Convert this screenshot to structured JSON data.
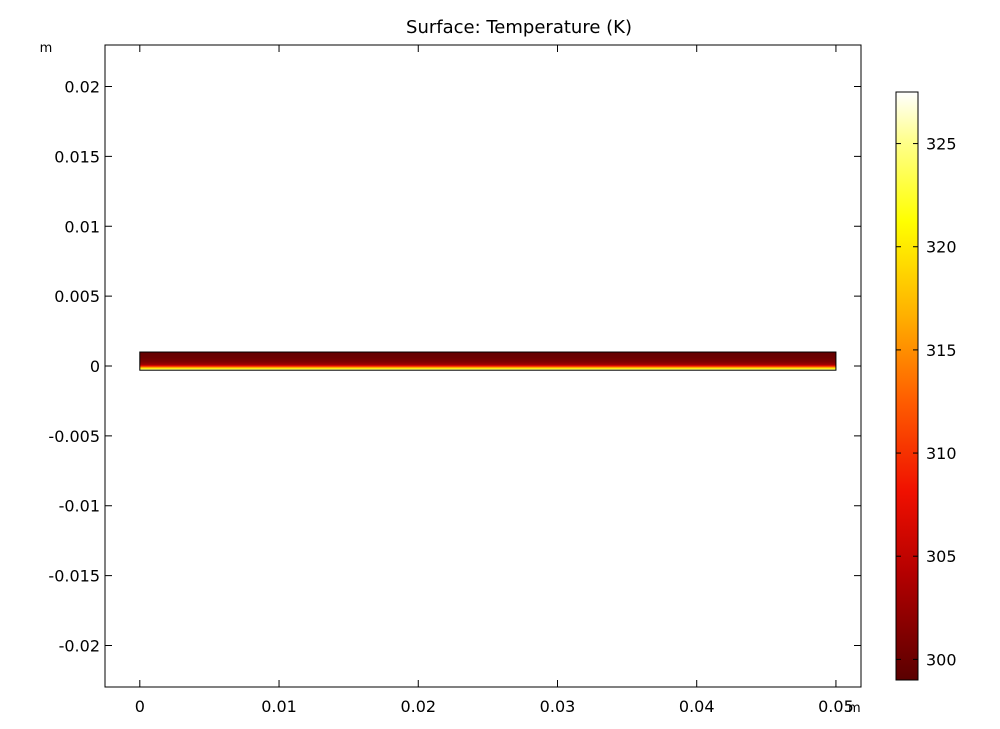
{
  "chart_data": {
    "type": "heatmap",
    "title": "Surface: Temperature (K)",
    "x_unit": "m",
    "y_unit": "m",
    "xlim": [
      -0.0025,
      0.0518
    ],
    "ylim": [
      -0.02297,
      0.02297
    ],
    "x_ticks": [
      0,
      0.01,
      0.02,
      0.03,
      0.04,
      0.05
    ],
    "x_tick_labels": [
      "0",
      "0.01",
      "0.02",
      "0.03",
      "0.04",
      "0.05"
    ],
    "y_ticks": [
      0.02,
      0.015,
      0.01,
      0.005,
      0,
      -0.005,
      -0.01,
      -0.015,
      -0.02
    ],
    "y_tick_labels": [
      "0.02",
      "0.015",
      "0.01",
      "0.005",
      "0",
      "-0.005",
      "-0.01",
      "-0.015",
      "-0.02"
    ],
    "domain": {
      "x_range": [
        0,
        0.05
      ],
      "y_range": [
        -0.0003,
        0.001
      ]
    },
    "temperature_profile_along_y": [
      {
        "y": 0.001,
        "T": 299.5
      },
      {
        "y": 0.0006,
        "T": 300
      },
      {
        "y": 0.0003,
        "T": 301
      },
      {
        "y": 0.0001,
        "T": 303
      },
      {
        "y": 0.0,
        "T": 308
      },
      {
        "y": -0.0001,
        "T": 316
      },
      {
        "y": -0.0002,
        "T": 322
      },
      {
        "y": -0.0003,
        "T": 327
      }
    ],
    "colorbar": {
      "min": 299,
      "max": 327.5,
      "ticks": [
        300,
        305,
        310,
        315,
        320,
        325
      ],
      "tick_labels": [
        "300",
        "305",
        "310",
        "315",
        "320",
        "325"
      ],
      "colormap": "heat",
      "colors": [
        {
          "pos": 0.0,
          "color": "#5a0000"
        },
        {
          "pos": 0.18,
          "color": "#b30000"
        },
        {
          "pos": 0.32,
          "color": "#f01000"
        },
        {
          "pos": 0.48,
          "color": "#ff6000"
        },
        {
          "pos": 0.62,
          "color": "#ffb000"
        },
        {
          "pos": 0.78,
          "color": "#ffff00"
        },
        {
          "pos": 0.92,
          "color": "#ffff90"
        },
        {
          "pos": 1.0,
          "color": "#ffffff"
        }
      ]
    },
    "grid": false,
    "legend": "colorbar-right"
  }
}
